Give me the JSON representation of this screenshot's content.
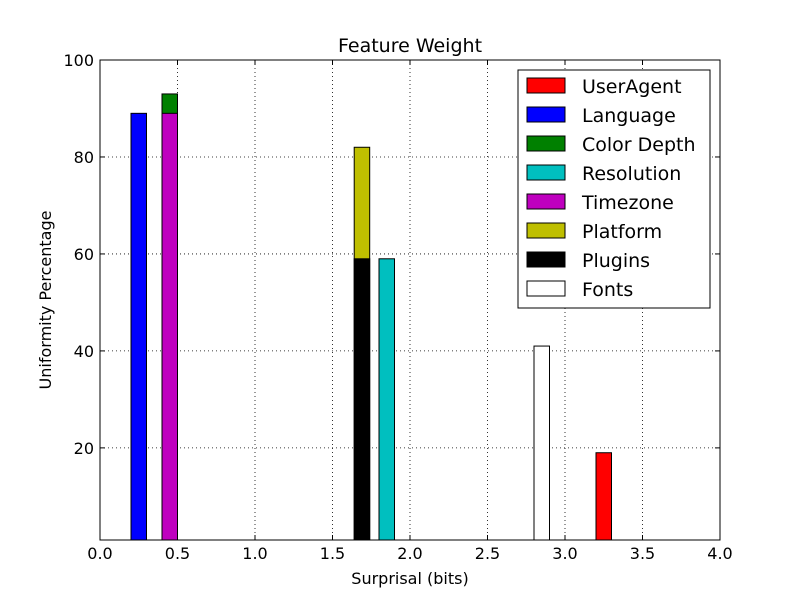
{
  "chart_data": {
    "type": "bar",
    "title": "Feature Weight",
    "xlabel": "Surprisal (bits)",
    "ylabel": "Uniformity Percentage",
    "xlim": [
      0.0,
      4.0
    ],
    "ylim": [
      1,
      100
    ],
    "x_ticks": [
      "0.0",
      "0.5",
      "1.0",
      "1.5",
      "2.0",
      "2.5",
      "3.0",
      "3.5",
      "4.0"
    ],
    "y_ticks": [
      "20",
      "40",
      "60",
      "80",
      "100"
    ],
    "grid": true,
    "legend_position": "top-right",
    "series": [
      {
        "name": "UserAgent",
        "color": "#ff0000",
        "x": 3.2,
        "value": 19
      },
      {
        "name": "Language",
        "color": "#0000ff",
        "x": 0.2,
        "value": 89
      },
      {
        "name": "Color Depth",
        "color": "#008000",
        "x": 0.4,
        "value": 93
      },
      {
        "name": "Resolution",
        "color": "#00bfbf",
        "x": 1.8,
        "value": 59
      },
      {
        "name": "Timezone",
        "color": "#bf00bf",
        "x": 0.4,
        "value": 89
      },
      {
        "name": "Platform",
        "color": "#bfbf00",
        "x": 1.64,
        "value": 82
      },
      {
        "name": "Plugins",
        "color": "#000000",
        "x": 1.64,
        "value": 59
      },
      {
        "name": "Fonts",
        "color": "#ffffff",
        "x": 2.8,
        "value": 41
      }
    ]
  }
}
